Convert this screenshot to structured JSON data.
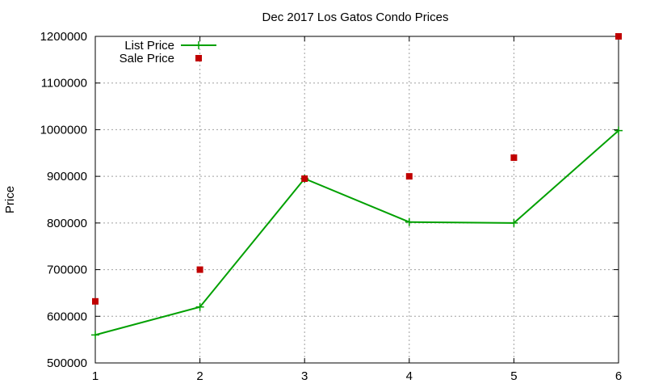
{
  "chart_data": {
    "type": "line",
    "title": "Dec 2017 Los Gatos Condo Prices",
    "xlabel": "",
    "ylabel": "Price",
    "x": [
      1,
      2,
      3,
      4,
      5,
      6
    ],
    "xlim": [
      1,
      6
    ],
    "ylim": [
      500000,
      1200000
    ],
    "xticks": [
      "1",
      "2",
      "3",
      "4",
      "5",
      "6"
    ],
    "yticks": [
      "500000",
      "600000",
      "700000",
      "800000",
      "900000",
      "1000000",
      "1100000",
      "1200000"
    ],
    "grid": true,
    "legend_position": "top-left",
    "series": [
      {
        "name": "List Price",
        "style": "line+cross",
        "color": "#00a000",
        "x": [
          1,
          2,
          3,
          4,
          5,
          6
        ],
        "values": [
          560000,
          620000,
          895000,
          802000,
          800000,
          998000
        ]
      },
      {
        "name": "Sale Price",
        "style": "square-markers",
        "color": "#c00000",
        "x": [
          1,
          2,
          3,
          4,
          5,
          6
        ],
        "values": [
          632000,
          700000,
          895000,
          900000,
          940000,
          1200000
        ]
      }
    ]
  }
}
